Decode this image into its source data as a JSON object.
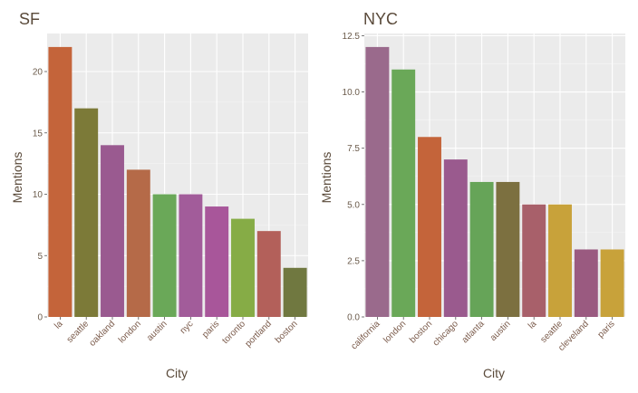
{
  "chart_data": [
    {
      "type": "bar",
      "title": "SF",
      "xlabel": "City",
      "ylabel": "Mentions",
      "categories": [
        "la",
        "seattle",
        "oakland",
        "london",
        "austin",
        "nyc",
        "paris",
        "toronto",
        "portland",
        "boston"
      ],
      "values": [
        22,
        17,
        14,
        12,
        10,
        10,
        9,
        8,
        7,
        4
      ],
      "colors": [
        "#c4643a",
        "#7c7a38",
        "#9a5a90",
        "#b56a48",
        "#6aa858",
        "#a25c9a",
        "#a8569a",
        "#86ac46",
        "#b3605a",
        "#707840"
      ],
      "ylim": [
        0,
        23.1
      ],
      "yticks": [
        0,
        5,
        10,
        15,
        20
      ],
      "ytick_labels": [
        "0",
        "5",
        "10",
        "15",
        "20"
      ],
      "grid": true
    },
    {
      "type": "bar",
      "title": "NYC",
      "xlabel": "City",
      "ylabel": "Mentions",
      "categories": [
        "california",
        "london",
        "boston",
        "chicago",
        "atlanta",
        "austin",
        "la",
        "seattle",
        "cleveland",
        "paris"
      ],
      "values": [
        12,
        11,
        8,
        7,
        6,
        6,
        5,
        5,
        3,
        3
      ],
      "colors": [
        "#9a6a8c",
        "#6aa858",
        "#c4643a",
        "#9a5a8e",
        "#66a458",
        "#7c7040",
        "#a8606a",
        "#c8a23a",
        "#9a5a80",
        "#c8a23a"
      ],
      "ylim": [
        0,
        12.6
      ],
      "yticks": [
        0,
        2.5,
        5,
        7.5,
        10,
        12.5
      ],
      "ytick_labels": [
        "0.0",
        "2.5",
        "5.0",
        "7.5",
        "10.0",
        "12.5"
      ],
      "grid": true
    }
  ]
}
